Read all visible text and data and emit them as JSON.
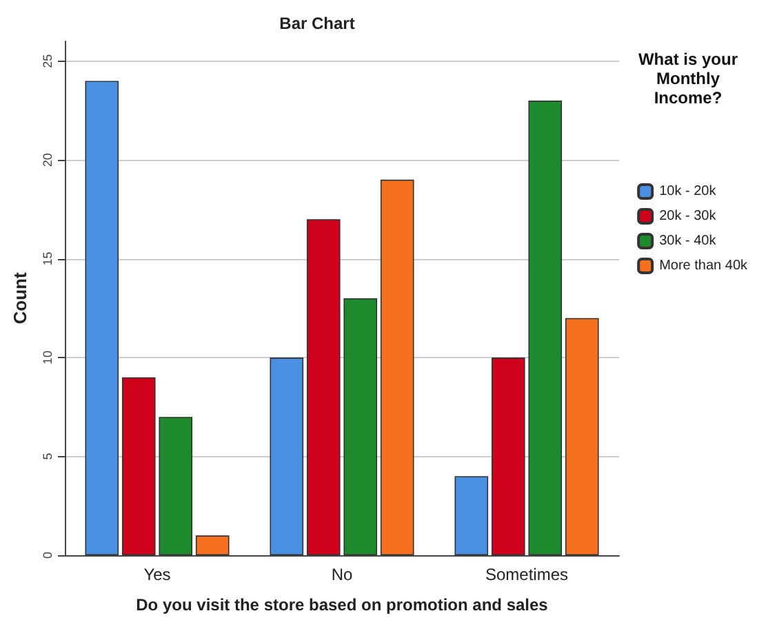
{
  "chart_data": {
    "type": "bar",
    "title": "Bar Chart",
    "xlabel": "Do you visit the store based on promotion and sales",
    "ylabel": "Count",
    "legend_title": "What is your Monthly Income?",
    "categories": [
      "Yes",
      "No",
      "Sometimes"
    ],
    "series": [
      {
        "name": "10k - 20k",
        "color": "#4a90e2",
        "values": [
          24,
          10,
          4
        ]
      },
      {
        "name": "20k - 30k",
        "color": "#d0021b",
        "values": [
          9,
          17,
          10
        ]
      },
      {
        "name": "30k - 40k",
        "color": "#1e8a2e",
        "values": [
          7,
          13,
          23
        ]
      },
      {
        "name": "More than 40k",
        "color": "#f5701f",
        "values": [
          1,
          19,
          12
        ]
      }
    ],
    "ylim": [
      0,
      26
    ],
    "yticks": [
      0,
      5,
      10,
      15,
      20,
      25
    ],
    "grid": "y",
    "legend": "top right"
  }
}
